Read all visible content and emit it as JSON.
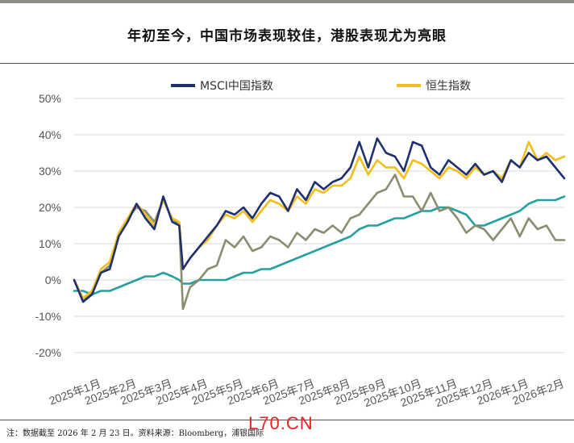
{
  "title": "年初至今，中国市场表现较佳，港股表现尤为亮眼",
  "footnote": "注：数据截至 2026 年 2 月 23 日。资料来源：Bloomberg，浦银国际",
  "watermark": "L70.CN",
  "chart_data": {
    "type": "line",
    "y_ticks": [
      "50%",
      "40%",
      "30%",
      "20%",
      "10%",
      "0%",
      "-10%",
      "-20%"
    ],
    "ylim": [
      -20,
      50
    ],
    "x_ticks": [
      "2025年1月",
      "2025年2月",
      "2025年3月",
      "2025年4月",
      "2025年5月",
      "2025年6月",
      "2025年7月",
      "2025年8月",
      "2025年9月",
      "2025年10月",
      "2025年11月",
      "2025年12月",
      "2026年1月",
      "2026年2月"
    ],
    "grid": "horizontal",
    "legend_position": "top",
    "series": [
      {
        "name": "MSCI中国指数",
        "color": "#1f3070",
        "t": [
          0,
          0.25,
          0.5,
          0.75,
          1,
          1.25,
          1.5,
          1.75,
          2,
          2.25,
          2.5,
          2.75,
          2.95,
          3.05,
          3.25,
          3.5,
          3.75,
          4,
          4.25,
          4.5,
          4.75,
          5,
          5.25,
          5.5,
          5.75,
          6,
          6.25,
          6.5,
          6.75,
          7,
          7.25,
          7.5,
          7.75,
          8,
          8.25,
          8.5,
          8.75,
          9,
          9.25,
          9.5,
          9.75,
          10,
          10.25,
          10.5,
          10.75,
          11,
          11.25,
          11.5,
          11.75,
          12,
          12.25,
          12.5,
          12.75,
          13,
          13.25,
          13.5,
          13.75
        ],
        "values": [
          0,
          -6,
          -4,
          2,
          3,
          12,
          16,
          21,
          17,
          14,
          23,
          16,
          15,
          3,
          6,
          9,
          12,
          15,
          19,
          18,
          20,
          17,
          21,
          24,
          23,
          19,
          25,
          22,
          27,
          25,
          27,
          28,
          31,
          38,
          31,
          39,
          35,
          34,
          30,
          38,
          37,
          31,
          29,
          33,
          31,
          29,
          32,
          29,
          30,
          27,
          33,
          31,
          35,
          33,
          34,
          31,
          28
        ]
      },
      {
        "name": "恒生指数",
        "color": "#f2be1a",
        "t": [
          0,
          0.25,
          0.5,
          0.75,
          1,
          1.25,
          1.5,
          1.75,
          2,
          2.25,
          2.5,
          2.75,
          2.95,
          3.05,
          3.25,
          3.5,
          3.75,
          4,
          4.25,
          4.5,
          4.75,
          5,
          5.25,
          5.5,
          5.75,
          6,
          6.25,
          6.5,
          6.75,
          7,
          7.25,
          7.5,
          7.75,
          8,
          8.25,
          8.5,
          8.75,
          9,
          9.25,
          9.5,
          9.75,
          10,
          10.25,
          10.5,
          10.75,
          11,
          11.25,
          11.5,
          11.75,
          12,
          12.25,
          12.5,
          12.75,
          13,
          13.25,
          13.5,
          13.75
        ],
        "values": [
          0,
          -5,
          -3,
          3,
          5,
          13,
          17,
          21,
          18,
          15,
          22,
          17,
          16,
          3,
          6,
          9,
          11,
          15,
          18,
          17,
          19,
          16,
          19,
          22,
          21,
          19,
          23,
          21,
          25,
          24,
          26,
          26,
          28,
          34,
          29,
          33,
          31,
          31,
          28,
          33,
          32,
          30,
          28,
          31,
          30,
          28,
          31,
          29,
          30,
          28,
          33,
          31,
          38,
          33,
          35,
          33,
          34
        ]
      },
      {
        "name": "",
        "color": "#8c8c6e",
        "t": [
          0,
          0.25,
          0.5,
          0.75,
          1,
          1.25,
          1.5,
          1.75,
          2,
          2.25,
          2.5,
          2.75,
          2.95,
          3.05,
          3.25,
          3.5,
          3.75,
          4,
          4.25,
          4.5,
          4.75,
          5,
          5.25,
          5.5,
          5.75,
          6,
          6.25,
          6.5,
          6.75,
          7,
          7.25,
          7.5,
          7.75,
          8,
          8.25,
          8.5,
          8.75,
          9,
          9.25,
          9.5,
          9.75,
          10,
          10.25,
          10.5,
          10.75,
          11,
          11.25,
          11.5,
          11.75,
          12,
          12.25,
          12.5,
          12.75,
          13,
          13.25,
          13.5,
          13.75
        ],
        "values": [
          0,
          -6,
          -3,
          2,
          4,
          12,
          17,
          20,
          19,
          16,
          22,
          17,
          15,
          -8,
          -2,
          0,
          3,
          4,
          11,
          9,
          12,
          8,
          9,
          12,
          11,
          9,
          13,
          11,
          14,
          13,
          15,
          13,
          17,
          18,
          21,
          24,
          25,
          29,
          23,
          23,
          19,
          24,
          19,
          20,
          17,
          13,
          15,
          14,
          11,
          14,
          17,
          12,
          17,
          14,
          15,
          11,
          11
        ]
      },
      {
        "name": "",
        "color": "#23a0a0",
        "t": [
          0,
          0.25,
          0.5,
          0.75,
          1,
          1.25,
          1.5,
          1.75,
          2,
          2.25,
          2.5,
          2.75,
          2.95,
          3.05,
          3.25,
          3.5,
          3.75,
          4,
          4.25,
          4.5,
          4.75,
          5,
          5.25,
          5.5,
          5.75,
          6,
          6.25,
          6.5,
          6.75,
          7,
          7.25,
          7.5,
          7.75,
          8,
          8.25,
          8.5,
          8.75,
          9,
          9.25,
          9.5,
          9.75,
          10,
          10.25,
          10.5,
          10.75,
          11,
          11.25,
          11.5,
          11.75,
          12,
          12.25,
          12.5,
          12.75,
          13,
          13.25,
          13.5,
          13.75
        ],
        "values": [
          -3,
          -3,
          -4,
          -3,
          -3,
          -2,
          -1,
          0,
          1,
          1,
          2,
          1,
          0,
          -1,
          -1,
          0,
          0,
          0,
          0,
          1,
          2,
          2,
          3,
          3,
          4,
          5,
          6,
          7,
          8,
          9,
          10,
          11,
          12,
          14,
          15,
          15,
          16,
          17,
          17,
          18,
          19,
          19,
          20,
          20,
          19,
          18,
          15,
          15,
          16,
          17,
          18,
          19,
          21,
          22,
          22,
          22,
          23
        ]
      }
    ]
  }
}
